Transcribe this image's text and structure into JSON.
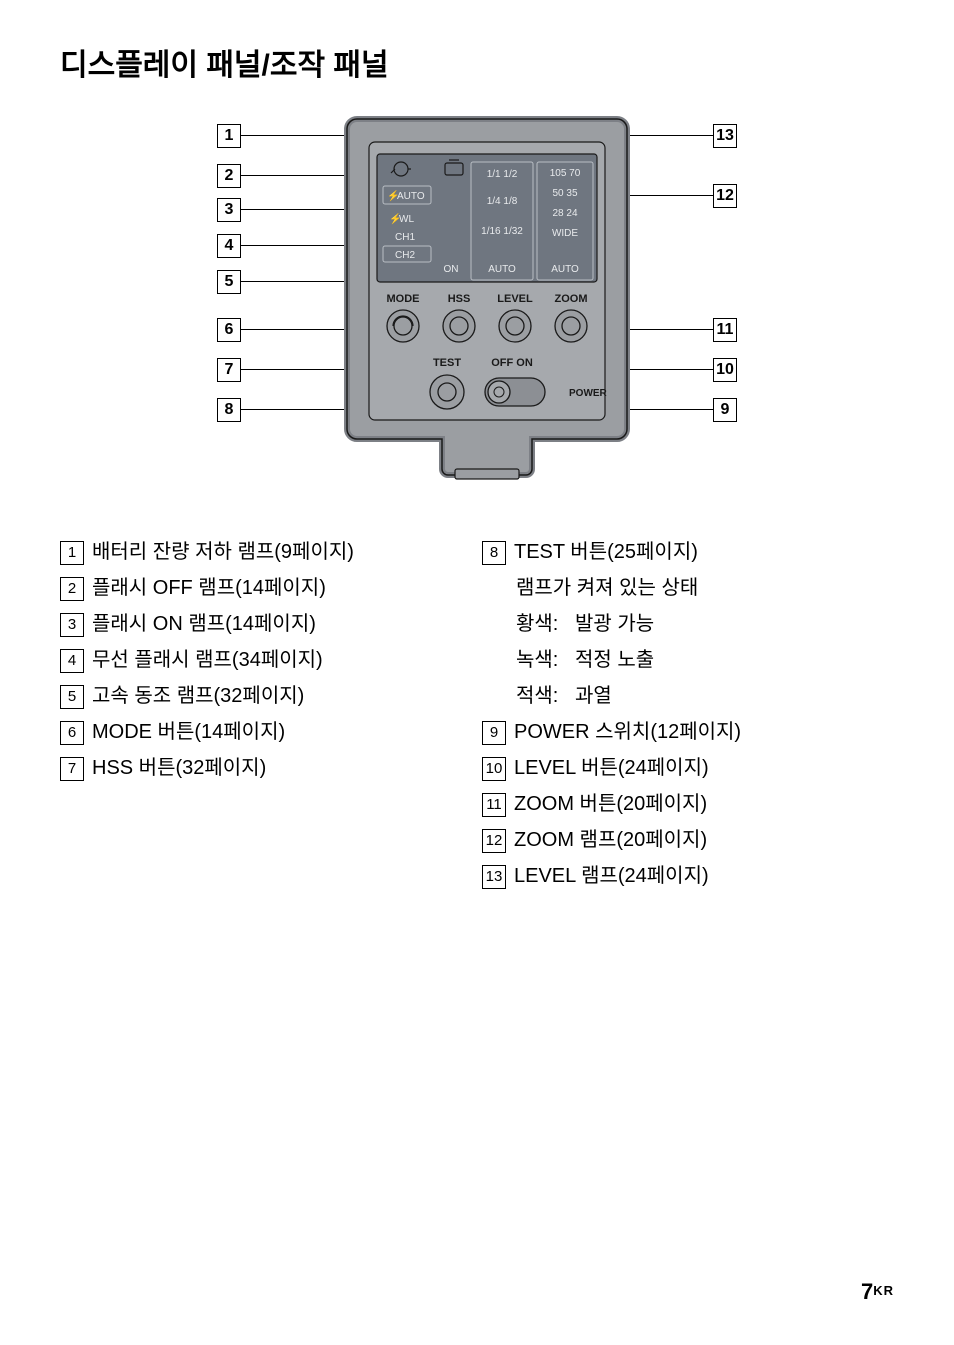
{
  "title": "디스플레이 패널/조작 패널",
  "page_number": "7",
  "page_suffix": "KR",
  "diagram": {
    "left_callouts": [
      "1",
      "2",
      "3",
      "4",
      "5",
      "6",
      "7",
      "8"
    ],
    "right_callouts": [
      "13",
      "12",
      "11",
      "10",
      "9"
    ],
    "panel": {
      "lcd_rows_left": [
        "AUTO",
        "WL",
        "CH1",
        "CH2"
      ],
      "lcd_center": [
        "1/1  1/2",
        "1/4  1/8",
        "1/16 1/32",
        "AUTO"
      ],
      "lcd_right": [
        "105 70",
        "50 35",
        "28 24",
        "WIDE",
        "AUTO"
      ],
      "hss_on": "ON",
      "button_row": [
        "MODE",
        "HSS",
        "LEVEL",
        "ZOOM"
      ],
      "test": "TEST",
      "off_on": "OFF   ON",
      "power": "POWER"
    },
    "colors": {
      "body": "#9b9ea2",
      "body_dk": "#7d8086",
      "lcd_bg": "#6f7680",
      "lcd_border": "#b9bec4",
      "text_light": "#e8eaec",
      "line": "#1a1a1a"
    }
  },
  "left_list": [
    {
      "n": "1",
      "t": "배터리 잔량 저하 램프(9페이지)"
    },
    {
      "n": "2",
      "t": "플래시 OFF 램프(14페이지)"
    },
    {
      "n": "3",
      "t": "플래시 ON 램프(14페이지)"
    },
    {
      "n": "4",
      "t": "무선 플래시 램프(34페이지)"
    },
    {
      "n": "5",
      "t": "고속 동조 램프(32페이지)"
    },
    {
      "n": "6",
      "t": "MODE 버튼(14페이지)"
    },
    {
      "n": "7",
      "t": "HSS 버튼(32페이지)"
    }
  ],
  "right_list_head": {
    "n": "8",
    "t": "TEST 버튼(25페이지)"
  },
  "right_sub_title": "램프가 켜져 있는 상태",
  "right_colors": [
    {
      "c": "황색:",
      "m": "발광 가능"
    },
    {
      "c": "녹색:",
      "m": "적정 노출"
    },
    {
      "c": "적색:",
      "m": "과열"
    }
  ],
  "right_list_tail": [
    {
      "n": "9",
      "t": "POWER 스위치(12페이지)"
    },
    {
      "n": "10",
      "t": "LEVEL 버튼(24페이지)"
    },
    {
      "n": "11",
      "t": "ZOOM 버튼(20페이지)"
    },
    {
      "n": "12",
      "t": "ZOOM 램프(20페이지)"
    },
    {
      "n": "13",
      "t": "LEVEL 램프(24페이지)"
    }
  ]
}
